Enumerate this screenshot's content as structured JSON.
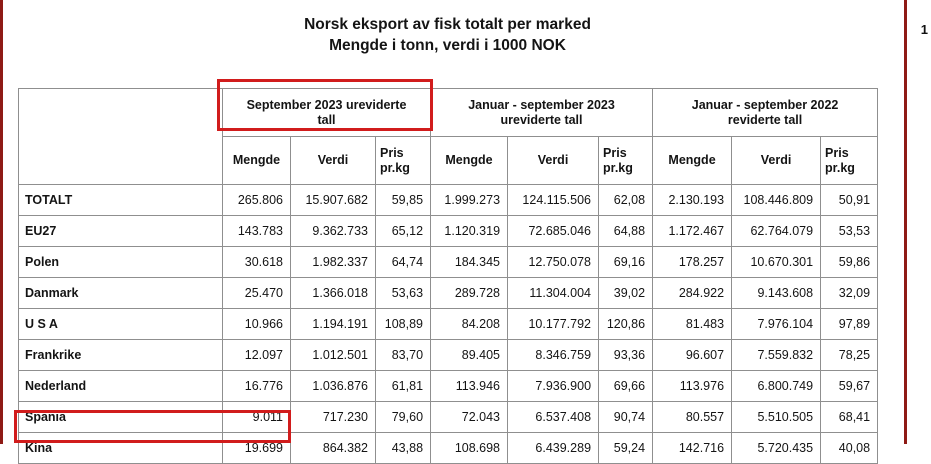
{
  "colors": {
    "highlight_red": "#d11c1c",
    "edge_red": "#8e1a15",
    "border_gray": "#8f8f8f",
    "text_color": "#111111"
  },
  "page": {
    "title_line1": "Norsk eksport av fisk totalt per marked",
    "title_line2": "Mengde i tonn, verdi i 1000 NOK",
    "page_number": "1"
  },
  "table": {
    "groups": [
      {
        "key": "sep-2023-ureviderte",
        "label": "September 2023 ureviderte\ntall",
        "highlighted": true
      },
      {
        "key": "jan-sep-2023-ureviderte",
        "label": "Januar - september 2023\nureviderte tall",
        "highlighted": false
      },
      {
        "key": "jan-sep-2022-reviderte",
        "label": "Januar - september 2022\nreviderte tall",
        "highlighted": false
      }
    ],
    "sub_headers": [
      {
        "key": "mengde",
        "label": "Mengde"
      },
      {
        "key": "verdi",
        "label": "Verdi"
      },
      {
        "key": "pris-pr-kg",
        "label": "Pris\npr.kg"
      }
    ],
    "rows": [
      {
        "label": "TOTALT",
        "highlighted": false,
        "values": [
          "265.806",
          "15.907.682",
          "59,85",
          "1.999.273",
          "124.115.506",
          "62,08",
          "2.130.193",
          "108.446.809",
          "50,91"
        ]
      },
      {
        "label": "EU27",
        "highlighted": false,
        "values": [
          "143.783",
          "9.362.733",
          "65,12",
          "1.120.319",
          "72.685.046",
          "64,88",
          "1.172.467",
          "62.764.079",
          "53,53"
        ]
      },
      {
        "label": "Polen",
        "highlighted": false,
        "values": [
          "30.618",
          "1.982.337",
          "64,74",
          "184.345",
          "12.750.078",
          "69,16",
          "178.257",
          "10.670.301",
          "59,86"
        ]
      },
      {
        "label": "Danmark",
        "highlighted": false,
        "values": [
          "25.470",
          "1.366.018",
          "53,63",
          "289.728",
          "11.304.004",
          "39,02",
          "284.922",
          "9.143.608",
          "32,09"
        ]
      },
      {
        "label": "U S A",
        "highlighted": false,
        "values": [
          "10.966",
          "1.194.191",
          "108,89",
          "84.208",
          "10.177.792",
          "120,86",
          "81.483",
          "7.976.104",
          "97,89"
        ]
      },
      {
        "label": "Frankrike",
        "highlighted": false,
        "values": [
          "12.097",
          "1.012.501",
          "83,70",
          "89.405",
          "8.346.759",
          "93,36",
          "96.607",
          "7.559.832",
          "78,25"
        ]
      },
      {
        "label": "Nederland",
        "highlighted": false,
        "values": [
          "16.776",
          "1.036.876",
          "61,81",
          "113.946",
          "7.936.900",
          "69,66",
          "113.976",
          "6.800.749",
          "59,67"
        ]
      },
      {
        "label": "Spania",
        "highlighted": false,
        "values": [
          "9.011",
          "717.230",
          "79,60",
          "72.043",
          "6.537.408",
          "90,74",
          "80.557",
          "5.510.505",
          "68,41"
        ]
      },
      {
        "label": "Kina",
        "highlighted": true,
        "values": [
          "19.699",
          "864.382",
          "43,88",
          "108.698",
          "6.439.289",
          "59,24",
          "142.716",
          "5.720.435",
          "40,08"
        ]
      }
    ]
  }
}
